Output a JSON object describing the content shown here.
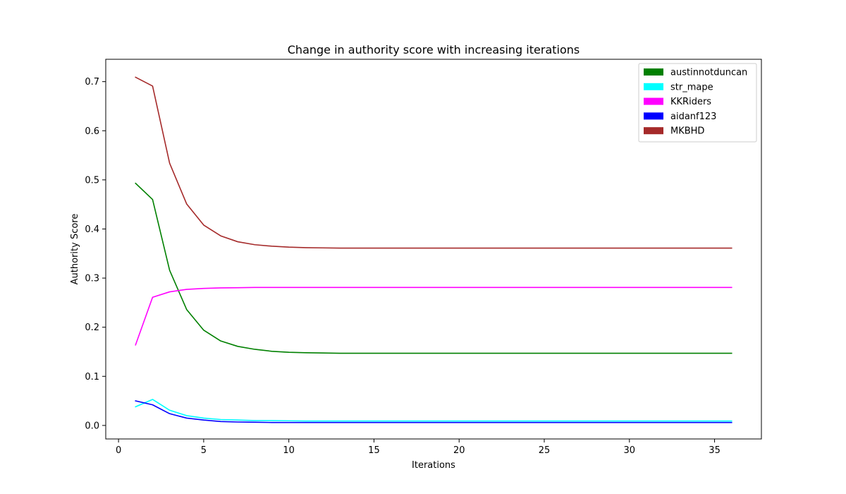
{
  "chart_data": {
    "type": "line",
    "title": "Change in authority score with increasing iterations",
    "xlabel": "Iterations",
    "ylabel": "Authority Score",
    "xlim": [
      -0.75,
      37.75
    ],
    "ylim": [
      -0.0275,
      0.7455
    ],
    "xticks": [
      0,
      5,
      10,
      15,
      20,
      25,
      30,
      35
    ],
    "yticks": [
      0.0,
      0.1,
      0.2,
      0.3,
      0.4,
      0.5,
      0.6,
      0.7
    ],
    "ytick_labels": [
      "0.0",
      "0.1",
      "0.2",
      "0.3",
      "0.4",
      "0.5",
      "0.6",
      "0.7"
    ],
    "grid": false,
    "legend_position": "top-right",
    "x": [
      1,
      2,
      3,
      4,
      5,
      6,
      7,
      8,
      9,
      10,
      11,
      12,
      13,
      14,
      15,
      16,
      17,
      18,
      19,
      20,
      21,
      22,
      23,
      24,
      25,
      26,
      27,
      28,
      29,
      30,
      31,
      32,
      33,
      34,
      35,
      36
    ],
    "series": [
      {
        "name": "austinnotduncan",
        "color": "#008000",
        "values": [
          0.493,
          0.46,
          0.316,
          0.236,
          0.194,
          0.172,
          0.161,
          0.155,
          0.151,
          0.149,
          0.148,
          0.1475,
          0.147,
          0.147,
          0.147,
          0.147,
          0.147,
          0.147,
          0.147,
          0.147,
          0.147,
          0.147,
          0.147,
          0.147,
          0.147,
          0.147,
          0.147,
          0.147,
          0.147,
          0.147,
          0.147,
          0.147,
          0.147,
          0.147,
          0.147,
          0.147
        ]
      },
      {
        "name": "str_mape",
        "color": "#00ffff",
        "values": [
          0.038,
          0.053,
          0.031,
          0.02,
          0.015,
          0.012,
          0.011,
          0.01,
          0.01,
          0.0095,
          0.009,
          0.009,
          0.009,
          0.009,
          0.009,
          0.009,
          0.009,
          0.009,
          0.009,
          0.009,
          0.009,
          0.009,
          0.009,
          0.009,
          0.009,
          0.009,
          0.009,
          0.009,
          0.009,
          0.009,
          0.009,
          0.009,
          0.009,
          0.009,
          0.009,
          0.009
        ]
      },
      {
        "name": "KKRiders",
        "color": "#ff00ff",
        "values": [
          0.164,
          0.261,
          0.272,
          0.277,
          0.279,
          0.28,
          0.2805,
          0.281,
          0.281,
          0.281,
          0.281,
          0.281,
          0.281,
          0.281,
          0.281,
          0.281,
          0.281,
          0.281,
          0.281,
          0.281,
          0.281,
          0.281,
          0.281,
          0.281,
          0.281,
          0.281,
          0.281,
          0.281,
          0.281,
          0.281,
          0.281,
          0.281,
          0.281,
          0.281,
          0.281,
          0.281
        ]
      },
      {
        "name": "aidanf123",
        "color": "#0000ff",
        "values": [
          0.05,
          0.042,
          0.024,
          0.015,
          0.011,
          0.008,
          0.007,
          0.0065,
          0.006,
          0.006,
          0.006,
          0.006,
          0.006,
          0.006,
          0.006,
          0.006,
          0.006,
          0.006,
          0.006,
          0.006,
          0.006,
          0.006,
          0.006,
          0.006,
          0.006,
          0.006,
          0.006,
          0.006,
          0.006,
          0.006,
          0.006,
          0.006,
          0.006,
          0.006,
          0.006,
          0.006
        ]
      },
      {
        "name": "MKBHD",
        "color": "#a52a2a",
        "values": [
          0.709,
          0.691,
          0.534,
          0.451,
          0.408,
          0.386,
          0.374,
          0.368,
          0.365,
          0.363,
          0.362,
          0.3615,
          0.361,
          0.361,
          0.361,
          0.361,
          0.361,
          0.361,
          0.361,
          0.361,
          0.361,
          0.361,
          0.361,
          0.361,
          0.361,
          0.361,
          0.361,
          0.361,
          0.361,
          0.361,
          0.361,
          0.361,
          0.361,
          0.361,
          0.361,
          0.361
        ]
      }
    ]
  }
}
